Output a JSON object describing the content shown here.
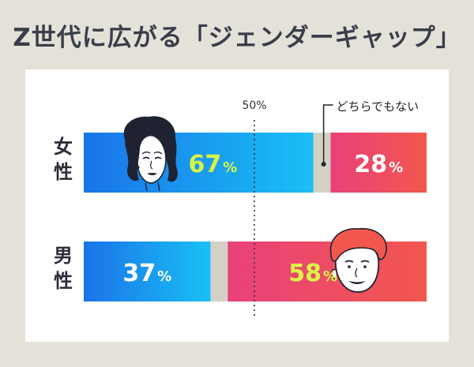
{
  "title": "Z世代に広がる「ジェンダーギャップ」",
  "chart_data": {
    "type": "bar",
    "stacked": true,
    "orientation": "horizontal",
    "xlim": [
      0,
      100
    ],
    "reference_line": {
      "value": 50,
      "label": "50%"
    },
    "annotation": "どちらでもない",
    "categories": [
      "女性",
      "男性"
    ],
    "series": [
      {
        "key": "blue",
        "values": [
          67,
          37
        ],
        "labels": [
          "67%",
          "37%"
        ]
      },
      {
        "key": "neutral",
        "values": [
          5,
          5
        ]
      },
      {
        "key": "red",
        "values": [
          28,
          58
        ],
        "labels": [
          "28%",
          "58%"
        ]
      }
    ]
  },
  "colors": {
    "blue_start": "#1a73e8",
    "blue_end": "#19c0f5",
    "red_start": "#e9417b",
    "red_end": "#f2574e",
    "neutral": "#d3d1c6",
    "highlight_label": "#d8f545",
    "white_label": "#ffffff",
    "dark_text": "#2a2d38"
  },
  "icons": {
    "female": "woman-face-icon",
    "male": "man-face-icon"
  }
}
